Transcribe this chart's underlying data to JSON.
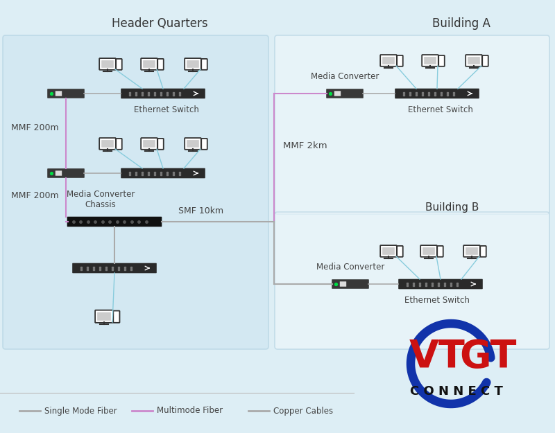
{
  "bg_color": "#ddeef5",
  "hq_panel_color": "#cce4f0",
  "right_panel_color": "#f0f8fc",
  "title_hq": "Header Quarters",
  "title_bldA": "Building A",
  "title_bldB": "Building B",
  "smf_color": "#aaaaaa",
  "mmf_color": "#cc88cc",
  "copper_color": "#aaaaaa",
  "device_color": "#333333",
  "switch_color": "#2a2a2a",
  "mc_color": "#383838",
  "chassis_color": "#1a1a1a",
  "wire_cyan": "#88ccdd",
  "vtgt_red": "#cc1111",
  "vtgt_blue": "#1133aa",
  "connect_color": "#111111",
  "label_color": "#444444",
  "legend_smf_color": "#aaaaaa",
  "legend_mmf_color": "#cc88cc",
  "legend_copper_color": "#aaaaaa"
}
